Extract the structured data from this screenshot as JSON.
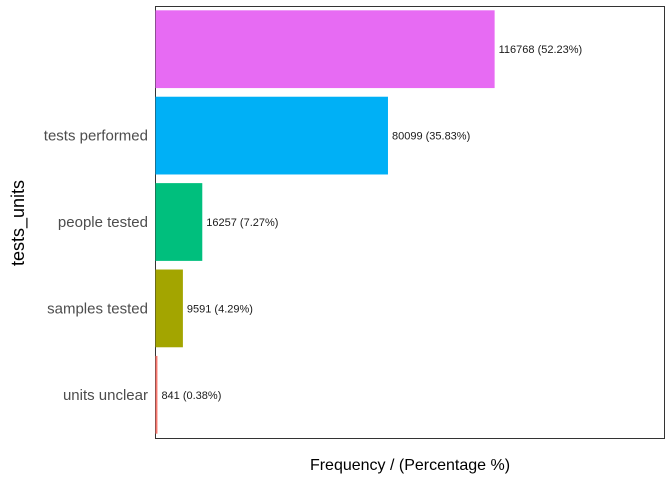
{
  "chart_data": {
    "type": "bar",
    "orientation": "horizontal",
    "categories": [
      "",
      "tests performed",
      "people tested",
      "samples tested",
      "units unclear"
    ],
    "values": [
      116768,
      80099,
      16257,
      9591,
      841
    ],
    "data_labels": [
      "116768 (52.23%)",
      "80099 (35.83%)",
      "16257 (7.27%)",
      "9591 (4.29%)",
      "841 (0.38%)"
    ],
    "colors": [
      "#E76BF3",
      "#00B0F6",
      "#00BF7D",
      "#A3A500",
      "#F8766D"
    ],
    "xlabel": "Frequency / (Percentage %)",
    "ylabel": "tests_units",
    "xlim": [
      0,
      175000
    ],
    "grid": false,
    "legend": "none",
    "frame": true
  }
}
